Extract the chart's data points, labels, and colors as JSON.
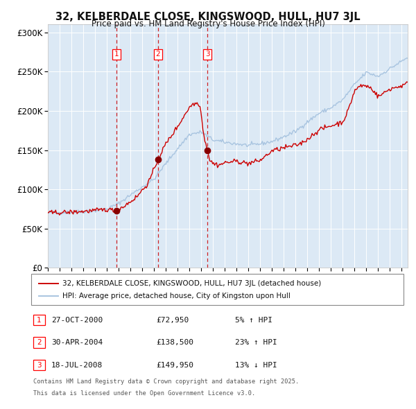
{
  "title_line1": "32, KELBERDALE CLOSE, KINGSWOOD, HULL, HU7 3JL",
  "title_line2": "Price paid vs. HM Land Registry's House Price Index (HPI)",
  "hpi_color": "#a8c4e0",
  "price_color": "#cc0000",
  "plot_bg_color": "#dce9f5",
  "ylim": [
    0,
    310000
  ],
  "yticks": [
    0,
    50000,
    100000,
    150000,
    200000,
    250000,
    300000
  ],
  "ytick_labels": [
    "£0",
    "£50K",
    "£100K",
    "£150K",
    "£200K",
    "£250K",
    "£300K"
  ],
  "sale_dates_num": [
    2000.82,
    2004.33,
    2008.54
  ],
  "sale_prices": [
    72950,
    138500,
    149950
  ],
  "sale_labels": [
    "1",
    "2",
    "3"
  ],
  "vline_color": "#cc0000",
  "marker_color": "#880000",
  "legend_line1": "32, KELBERDALE CLOSE, KINGSWOOD, HULL, HU7 3JL (detached house)",
  "legend_line2": "HPI: Average price, detached house, City of Kingston upon Hull",
  "table_entries": [
    {
      "label": "1",
      "date": "27-OCT-2000",
      "price": "£72,950",
      "change": "5% ↑ HPI"
    },
    {
      "label": "2",
      "date": "30-APR-2004",
      "price": "£138,500",
      "change": "23% ↑ HPI"
    },
    {
      "label": "3",
      "date": "18-JUL-2008",
      "price": "£149,950",
      "change": "13% ↓ HPI"
    }
  ],
  "footnote_line1": "Contains HM Land Registry data © Crown copyright and database right 2025.",
  "footnote_line2": "This data is licensed under the Open Government Licence v3.0.",
  "xmin": 1995.0,
  "xmax": 2025.5,
  "hpi_key_years": [
    1995,
    1996,
    1997,
    1998,
    1999,
    2000,
    2001,
    2002,
    2003,
    2004,
    2005,
    2006,
    2007,
    2008,
    2009,
    2010,
    2011,
    2012,
    2013,
    2014,
    2015,
    2016,
    2017,
    2018,
    2019,
    2020,
    2021,
    2022,
    2023,
    2024,
    2025.5
  ],
  "hpi_key_prices": [
    70000,
    70500,
    71000,
    72000,
    73000,
    75000,
    82000,
    93000,
    103000,
    113000,
    133000,
    152000,
    170000,
    173000,
    163000,
    160000,
    158000,
    156000,
    158000,
    161000,
    167000,
    174000,
    186000,
    197000,
    204000,
    214000,
    234000,
    249000,
    244000,
    254000,
    268000
  ],
  "pp_key_years": [
    1995,
    1997,
    1999,
    2000,
    2000.82,
    2001.5,
    2002.5,
    2003.5,
    2004.0,
    2004.33,
    2005,
    2006,
    2006.8,
    2007.2,
    2007.6,
    2007.9,
    2008.2,
    2008.54,
    2008.7,
    2009.0,
    2009.5,
    2010,
    2011,
    2012,
    2013,
    2014,
    2015,
    2016,
    2016.5,
    2017,
    2018,
    2019,
    2020,
    2020.5,
    2021,
    2021.5,
    2022,
    2022.5,
    2023,
    2024,
    2025,
    2025.5
  ],
  "pp_key_prices": [
    70000,
    71000,
    73000,
    74500,
    72950,
    79000,
    90000,
    108000,
    125000,
    138500,
    158000,
    180000,
    200000,
    208000,
    210000,
    208000,
    170000,
    149950,
    138000,
    133000,
    131000,
    134000,
    136000,
    133000,
    137000,
    149000,
    153000,
    156000,
    159000,
    164000,
    176000,
    181000,
    186000,
    202000,
    226000,
    232000,
    232000,
    228000,
    218000,
    228000,
    232000,
    235000
  ]
}
